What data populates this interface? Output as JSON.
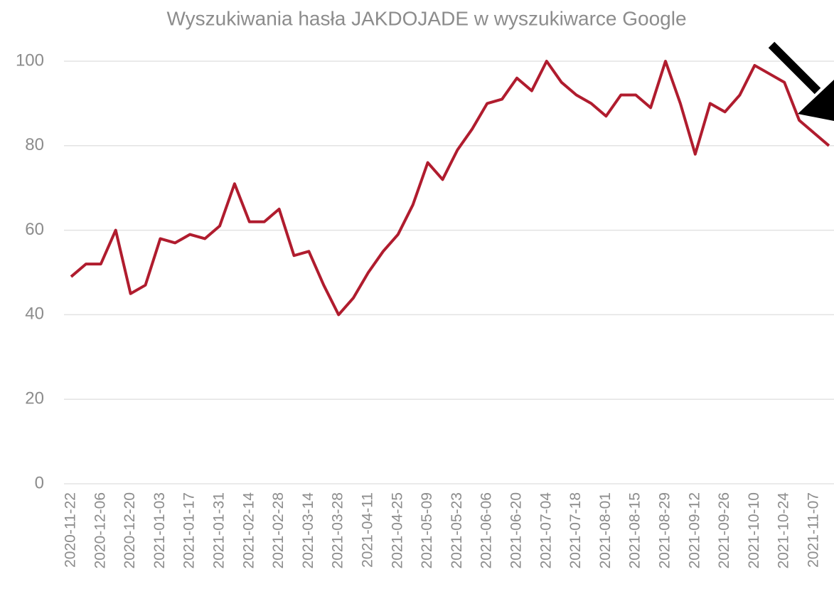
{
  "chart_data": {
    "type": "line",
    "title": "Wyszukiwania hasła JAKDOJADE w wyszukiwarce Google",
    "categories": [
      "2020-11-22",
      null,
      "2020-12-06",
      null,
      "2020-12-20",
      null,
      "2021-01-03",
      null,
      "2021-01-17",
      null,
      "2021-01-31",
      null,
      "2021-02-14",
      null,
      "2021-02-28",
      null,
      "2021-03-14",
      null,
      "2021-03-28",
      null,
      "2021-04-11",
      null,
      "2021-04-25",
      null,
      "2021-05-09",
      null,
      "2021-05-23",
      null,
      "2021-06-06",
      null,
      "2021-06-20",
      null,
      "2021-07-04",
      null,
      "2021-07-18",
      null,
      "2021-08-01",
      null,
      "2021-08-15",
      null,
      "2021-08-29",
      null,
      "2021-09-12",
      null,
      "2021-09-26",
      null,
      "2021-10-10",
      null,
      "2021-10-24",
      null,
      "2021-11-07",
      null
    ],
    "series": [
      {
        "name": "JAKDOJADE",
        "color": "#b01c2e",
        "values": [
          49,
          52,
          52,
          60,
          45,
          47,
          58,
          57,
          59,
          58,
          61,
          71,
          62,
          62,
          65,
          54,
          55,
          47,
          40,
          44,
          50,
          55,
          59,
          66,
          76,
          72,
          79,
          84,
          90,
          91,
          96,
          93,
          100,
          95,
          92,
          90,
          87,
          92,
          92,
          89,
          100,
          90,
          78,
          90,
          88,
          92,
          99,
          97,
          95,
          86,
          83,
          80
        ]
      }
    ],
    "ylim": [
      0,
      100
    ],
    "yticks": [
      0,
      20,
      40,
      60,
      80,
      100
    ],
    "grid": true
  }
}
